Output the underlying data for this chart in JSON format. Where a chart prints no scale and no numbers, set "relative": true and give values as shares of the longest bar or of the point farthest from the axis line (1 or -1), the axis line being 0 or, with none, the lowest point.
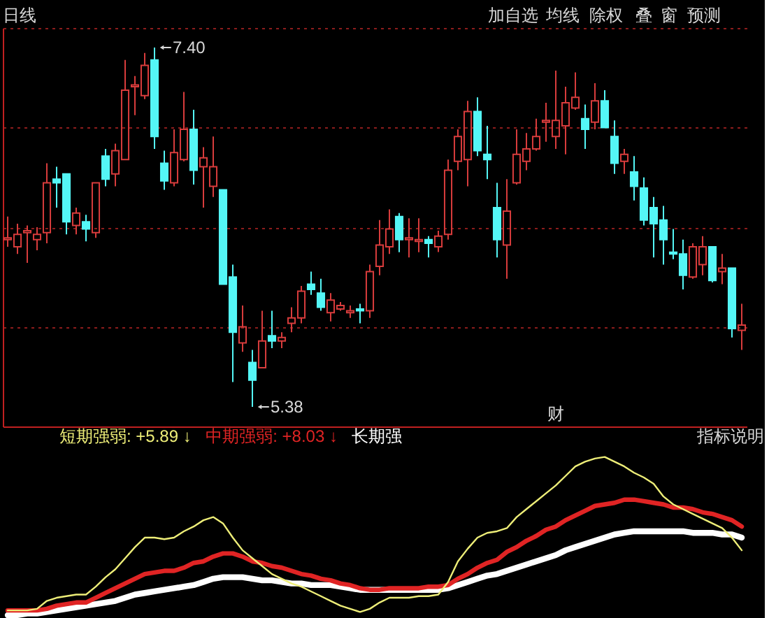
{
  "chart_data": [
    {
      "type": "candlestick",
      "categories": [
        null,
        null,
        null,
        null,
        null,
        null,
        null,
        null,
        null,
        null,
        null,
        null,
        null,
        null,
        null,
        null,
        null,
        null,
        null,
        null,
        null,
        null,
        null,
        null,
        null,
        null,
        null,
        null,
        null,
        null,
        null,
        null,
        null,
        null,
        null,
        null,
        null,
        null,
        null,
        null,
        null,
        null,
        null,
        null,
        null,
        null,
        null,
        null,
        null,
        null,
        null,
        null,
        null,
        null,
        null,
        null,
        null,
        null,
        null,
        null,
        null,
        null,
        null,
        null,
        null,
        null,
        null,
        null,
        null,
        null,
        null,
        null,
        null,
        null,
        null,
        null
      ],
      "ohlc": [
        [
          6.32,
          6.45,
          6.28,
          6.33
        ],
        [
          6.28,
          6.41,
          6.24,
          6.35
        ],
        [
          6.36,
          6.4,
          6.19,
          6.37
        ],
        [
          6.32,
          6.39,
          6.26,
          6.35
        ],
        [
          6.36,
          6.75,
          6.3,
          6.64
        ],
        [
          6.66,
          6.73,
          6.5,
          6.64
        ],
        [
          6.69,
          6.69,
          6.35,
          6.42
        ],
        [
          6.4,
          6.5,
          6.35,
          6.47
        ],
        [
          6.42,
          6.46,
          6.31,
          6.38
        ],
        [
          6.36,
          6.64,
          6.33,
          6.64
        ],
        [
          6.79,
          6.83,
          6.62,
          6.66
        ],
        [
          6.69,
          6.86,
          6.62,
          6.82
        ],
        [
          6.77,
          7.33,
          6.77,
          7.16
        ],
        [
          7.18,
          7.24,
          7.02,
          7.19
        ],
        [
          7.13,
          7.37,
          7.11,
          7.3
        ],
        [
          7.33,
          7.4,
          6.83,
          6.9
        ],
        [
          6.75,
          6.82,
          6.6,
          6.65
        ],
        [
          6.64,
          6.94,
          6.62,
          6.81
        ],
        [
          6.77,
          7.15,
          6.76,
          6.94
        ],
        [
          6.94,
          7.05,
          6.63,
          6.71
        ],
        [
          6.73,
          6.84,
          6.5,
          6.78
        ],
        [
          6.62,
          6.9,
          6.56,
          6.73
        ],
        [
          6.6,
          6.6,
          6.07,
          6.07
        ],
        [
          6.11,
          6.18,
          5.52,
          5.8
        ],
        [
          5.74,
          5.95,
          5.69,
          5.83
        ],
        [
          5.63,
          5.7,
          5.38,
          5.53
        ],
        [
          5.6,
          5.92,
          5.6,
          5.75
        ],
        [
          5.78,
          5.92,
          5.71,
          5.75
        ],
        [
          5.75,
          5.8,
          5.71,
          5.77
        ],
        [
          5.85,
          5.94,
          5.8,
          5.88
        ],
        [
          5.88,
          6.06,
          5.85,
          6.03
        ],
        [
          6.07,
          6.14,
          6.01,
          6.04
        ],
        [
          6.02,
          6.1,
          5.92,
          5.94
        ],
        [
          5.91,
          6.02,
          5.86,
          5.98
        ],
        [
          5.93,
          5.97,
          5.92,
          5.95
        ],
        [
          5.91,
          5.95,
          5.88,
          5.92
        ],
        [
          5.93,
          5.96,
          5.85,
          5.92
        ],
        [
          5.92,
          6.18,
          5.88,
          6.14
        ],
        [
          6.17,
          6.43,
          6.12,
          6.29
        ],
        [
          6.28,
          6.49,
          6.24,
          6.38
        ],
        [
          6.45,
          6.47,
          6.25,
          6.32
        ],
        [
          6.32,
          6.44,
          6.22,
          6.33
        ],
        [
          6.31,
          6.44,
          6.25,
          6.32
        ],
        [
          6.32,
          6.34,
          6.22,
          6.3
        ],
        [
          6.28,
          6.37,
          6.25,
          6.34
        ],
        [
          6.35,
          6.77,
          6.32,
          6.71
        ],
        [
          6.76,
          6.94,
          6.71,
          6.9
        ],
        [
          6.77,
          7.1,
          6.62,
          7.04
        ],
        [
          7.04,
          7.12,
          6.79,
          6.82
        ],
        [
          6.8,
          6.96,
          6.66,
          6.77
        ],
        [
          6.5,
          6.64,
          6.22,
          6.32
        ],
        [
          6.29,
          6.66,
          6.1,
          6.48
        ],
        [
          6.64,
          6.94,
          6.63,
          6.8
        ],
        [
          6.76,
          6.92,
          6.71,
          6.83
        ],
        [
          6.83,
          7.0,
          6.82,
          6.9
        ],
        [
          6.98,
          7.09,
          6.87,
          6.99
        ],
        [
          6.9,
          7.27,
          6.83,
          6.99
        ],
        [
          6.96,
          7.18,
          6.8,
          7.09
        ],
        [
          7.06,
          7.26,
          7.05,
          7.12
        ],
        [
          7.0,
          7.08,
          6.83,
          6.94
        ],
        [
          6.98,
          7.2,
          6.94,
          7.1
        ],
        [
          7.1,
          7.16,
          6.95,
          6.95
        ],
        [
          6.9,
          6.99,
          6.69,
          6.75
        ],
        [
          6.76,
          6.83,
          6.69,
          6.8
        ],
        [
          6.7,
          6.79,
          6.54,
          6.62
        ],
        [
          6.61,
          6.67,
          6.4,
          6.43
        ],
        [
          6.5,
          6.56,
          6.22,
          6.41
        ],
        [
          6.43,
          6.51,
          6.18,
          6.32
        ],
        [
          6.25,
          6.38,
          6.21,
          6.24
        ],
        [
          6.24,
          6.32,
          6.04,
          6.12
        ],
        [
          6.11,
          6.3,
          6.1,
          6.28
        ],
        [
          6.18,
          6.34,
          6.12,
          6.28
        ],
        [
          6.28,
          6.28,
          6.08,
          6.09
        ],
        [
          6.14,
          6.24,
          6.07,
          6.16
        ],
        [
          6.16,
          6.16,
          5.77,
          5.82
        ],
        [
          5.81,
          5.96,
          5.7,
          5.84
        ]
      ],
      "colors": [
        "#d83c3c",
        "#d83c3c",
        "#d83c3c",
        "#d83c3c",
        "#d83c3c",
        "#54f6f6",
        "#54f6f6",
        "#d83c3c",
        "#54f6f6",
        "#d83c3c",
        "#54f6f6",
        "#d83c3c",
        "#d83c3c",
        "#d83c3c",
        "#d83c3c",
        "#54f6f6",
        "#54f6f6",
        "#d83c3c",
        "#d83c3c",
        "#54f6f6",
        "#d83c3c",
        "#d83c3c",
        "#54f6f6",
        "#54f6f6",
        "#d83c3c",
        "#54f6f6",
        "#d83c3c",
        "#54f6f6",
        "#d83c3c",
        "#d83c3c",
        "#d83c3c",
        "#54f6f6",
        "#54f6f6",
        "#d83c3c",
        "#d83c3c",
        "#d83c3c",
        "#54f6f6",
        "#d83c3c",
        "#d83c3c",
        "#d83c3c",
        "#54f6f6",
        "#d83c3c",
        "#d83c3c",
        "#54f6f6",
        "#d83c3c",
        "#d83c3c",
        "#d83c3c",
        "#d83c3c",
        "#54f6f6",
        "#54f6f6",
        "#54f6f6",
        "#d83c3c",
        "#d83c3c",
        "#d83c3c",
        "#d83c3c",
        "#d83c3c",
        "#d83c3c",
        "#d83c3c",
        "#d83c3c",
        "#54f6f6",
        "#d83c3c",
        "#54f6f6",
        "#54f6f6",
        "#d83c3c",
        "#54f6f6",
        "#54f6f6",
        "#54f6f6",
        "#54f6f6",
        "#54f6f6",
        "#54f6f6",
        "#d83c3c",
        "#d83c3c",
        "#54f6f6",
        "#d83c3c",
        "#54f6f6",
        "#d83c3c"
      ],
      "ylim": [
        5.27,
        7.51
      ],
      "yticks": [
        {
          "value": 7.51,
          "label": null
        },
        {
          "value": 6.95,
          "label": null
        },
        {
          "value": 6.39,
          "label": null
        },
        {
          "value": 5.83,
          "label": null
        }
      ],
      "grid": "y",
      "tick_labels": false,
      "annotations": [
        "日线",
        "加自选",
        "均线",
        "除权",
        "叠",
        "窗",
        "预测",
        "财",
        "7.40",
        "5.38"
      ]
    },
    {
      "type": "line",
      "relative": true,
      "legend": "top left",
      "tick_labels": false,
      "categories": [
        null,
        null,
        null,
        null,
        null,
        null,
        null,
        null,
        null,
        null,
        null,
        null,
        null,
        null,
        null,
        null,
        null,
        null,
        null,
        null,
        null,
        null,
        null,
        null,
        null,
        null,
        null,
        null,
        null,
        null,
        null,
        null,
        null,
        null,
        null,
        null,
        null,
        null,
        null,
        null,
        null,
        null,
        null,
        null,
        null,
        null,
        null,
        null,
        null,
        null,
        null,
        null,
        null,
        null,
        null,
        null,
        null,
        null,
        null,
        null,
        null,
        null,
        null,
        null,
        null,
        null,
        null,
        null,
        null,
        null,
        null,
        null,
        null,
        null,
        null,
        null
      ],
      "series": [
        {
          "name": "短期强弱: +5.89 ↓",
          "color": "#eeee78",
          "values": [
            0.03,
            0.03,
            0.03,
            0.04,
            0.09,
            0.11,
            0.12,
            0.13,
            0.13,
            0.18,
            0.24,
            0.29,
            0.36,
            0.43,
            0.49,
            0.49,
            0.48,
            0.49,
            0.53,
            0.56,
            0.6,
            0.62,
            0.58,
            0.49,
            0.41,
            0.36,
            0.31,
            0.26,
            0.23,
            0.2,
            0.18,
            0.15,
            0.12,
            0.09,
            0.06,
            0.04,
            0.02,
            0.04,
            0.08,
            0.11,
            0.11,
            0.11,
            0.12,
            0.12,
            0.13,
            0.21,
            0.34,
            0.42,
            0.49,
            0.52,
            0.53,
            0.55,
            0.62,
            0.67,
            0.72,
            0.77,
            0.82,
            0.88,
            0.94,
            0.97,
            0.99,
            1,
            0.97,
            0.94,
            0.9,
            0.87,
            0.83,
            0.75,
            0.7,
            0.67,
            0.64,
            0.61,
            0.58,
            0.55,
            0.49,
            0.41
          ]
        },
        {
          "name": "中期强弱: +8.03 ↓",
          "color": "#e02424",
          "values": [
            0.03,
            0.03,
            0.03,
            0.03,
            0.04,
            0.06,
            0.07,
            0.08,
            0.08,
            0.11,
            0.14,
            0.17,
            0.2,
            0.23,
            0.26,
            0.27,
            0.28,
            0.28,
            0.3,
            0.33,
            0.34,
            0.37,
            0.39,
            0.39,
            0.37,
            0.34,
            0.33,
            0.31,
            0.3,
            0.28,
            0.26,
            0.25,
            0.23,
            0.22,
            0.2,
            0.19,
            0.17,
            0.16,
            0.16,
            0.17,
            0.17,
            0.17,
            0.17,
            0.18,
            0.18,
            0.19,
            0.23,
            0.26,
            0.3,
            0.33,
            0.35,
            0.4,
            0.43,
            0.47,
            0.5,
            0.54,
            0.56,
            0.6,
            0.63,
            0.66,
            0.69,
            0.7,
            0.71,
            0.73,
            0.73,
            0.72,
            0.71,
            0.7,
            0.68,
            0.68,
            0.67,
            0.65,
            0.64,
            0.62,
            0.6,
            0.56
          ]
        },
        {
          "name": "长期强",
          "color": "#ffffff",
          "values": [
            0,
            0,
            0.01,
            0.01,
            0.02,
            0.03,
            0.04,
            0.05,
            0.06,
            0.07,
            0.08,
            0.09,
            0.11,
            0.13,
            0.14,
            0.15,
            0.16,
            0.17,
            0.18,
            0.19,
            0.21,
            0.23,
            0.24,
            0.24,
            0.24,
            0.23,
            0.22,
            0.22,
            0.21,
            0.2,
            0.2,
            0.19,
            0.19,
            0.19,
            0.18,
            0.17,
            0.16,
            0.16,
            0.16,
            0.16,
            0.16,
            0.16,
            0.16,
            0.16,
            0.16,
            0.17,
            0.19,
            0.21,
            0.23,
            0.25,
            0.26,
            0.28,
            0.3,
            0.32,
            0.34,
            0.36,
            0.38,
            0.41,
            0.43,
            0.45,
            0.47,
            0.49,
            0.51,
            0.52,
            0.53,
            0.53,
            0.53,
            0.53,
            0.53,
            0.53,
            0.52,
            0.52,
            0.52,
            0.51,
            0.51,
            0.49
          ]
        }
      ],
      "annotations": [
        "指标说明"
      ]
    }
  ]
}
